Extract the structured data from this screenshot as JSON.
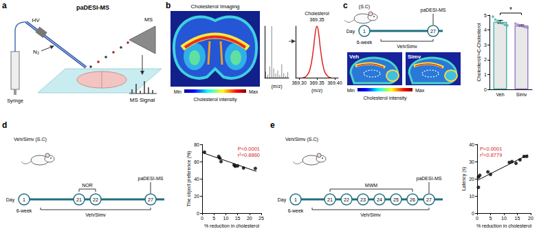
{
  "chart_data": [
    {
      "type": "bar",
      "categories": [
        null,
        null,
        null,
        null,
        null,
        null,
        null,
        null,
        null,
        null,
        null,
        null
      ],
      "values": [
        12,
        6,
        22,
        100,
        18,
        8,
        14,
        5,
        26,
        9,
        4,
        11
      ],
      "color": "#8c8c8c",
      "xlabel": "(m/z)",
      "ylim": [
        0,
        100
      ],
      "tick_labels": false,
      "grid": false
    },
    {
      "type": "line",
      "x": [
        369.31,
        369.32,
        369.33,
        369.34,
        369.345,
        369.35,
        369.355,
        369.36,
        369.37,
        369.38,
        369.39
      ],
      "values": [
        0,
        3,
        15,
        55,
        85,
        100,
        85,
        55,
        15,
        3,
        0
      ],
      "color": "#e02020",
      "xlabel": "(m/z)",
      "xlim": [
        369.29,
        369.41
      ],
      "xticks": [
        {
          "value": 369.3,
          "label": "369.30"
        },
        {
          "value": 369.35,
          "label": "369.35"
        },
        {
          "value": 369.4,
          "label": "369.40"
        }
      ],
      "ylim": [
        0,
        100
      ],
      "tick_labels": "x",
      "grid": false
    },
    {
      "type": "bar",
      "categories": [
        "Veh",
        "Simv"
      ],
      "values": [
        4.55,
        4.3
      ],
      "errors": [
        0.1,
        0.05
      ],
      "points": [
        [
          4.9,
          4.7,
          4.6,
          4.5,
          4.45,
          4.35,
          4.3
        ],
        [
          4.42,
          4.35,
          4.3,
          4.25,
          4.2,
          4.15
        ]
      ],
      "colors": [
        "#4fb3ad",
        "#9c7fc9"
      ],
      "ylabel": "Cholesterol/¹³C-Cholesterol",
      "ylim": [
        0,
        5
      ],
      "yticks": [
        0,
        1,
        2,
        3,
        4,
        5
      ],
      "annotations": [
        "*"
      ],
      "grid": false
    },
    {
      "type": "scatter",
      "x": [
        1,
        7,
        7.5,
        8,
        13.5,
        14,
        15,
        17.5,
        22.5
      ],
      "values": [
        71,
        66,
        64,
        60,
        56,
        54.5,
        55,
        52.5,
        52
      ],
      "color": "#000000",
      "trend": {
        "x": [
          0,
          23
        ],
        "values": [
          70.5,
          48.5
        ]
      },
      "xlabel": "% reduction in cholesterol",
      "ylabel": "The object preference (%)",
      "xlim": [
        0,
        25
      ],
      "xticks": [
        0,
        5,
        10,
        15,
        20,
        25
      ],
      "ylim": [
        0,
        80
      ],
      "yticks": [
        0,
        20,
        40,
        60,
        80
      ],
      "annotations": [
        "P<0.0001",
        "r²=0.8860"
      ],
      "grid": false
    },
    {
      "type": "scatter",
      "x": [
        0.5,
        0.5,
        1,
        4,
        5,
        12,
        13,
        14.5,
        16,
        17.5,
        18.5
      ],
      "values": [
        15,
        21,
        22,
        24,
        22.5,
        29.5,
        30,
        29,
        31,
        33,
        33
      ],
      "color": "#000000",
      "trend": {
        "x": [
          0,
          19
        ],
        "values": [
          19,
          34
        ]
      },
      "xlabel": "% reduction in cholesterol",
      "ylabel": "Latency (s)",
      "xlim": [
        0,
        20
      ],
      "xticks": [
        0,
        5,
        10,
        15,
        20
      ],
      "ylim": [
        0,
        40
      ],
      "yticks": [
        0,
        10,
        20,
        30,
        40
      ],
      "annotations": [
        "P<0.0001",
        "r²=0.8779"
      ],
      "grid": false
    }
  ],
  "figure": {
    "a": {
      "letter": "a",
      "hv": "HV",
      "title": "paDESI-MS",
      "ms": "MS",
      "gas": "N₂",
      "syringe": "Syringe",
      "signal": "MS Signal"
    },
    "b": {
      "letter": "b",
      "title": "Cholesterol Imaging",
      "peak": "Cholesterol",
      "peak_mz": "369.35",
      "colorbar": {
        "min": "Min",
        "max": "Max",
        "label": "Cholesterol intensity"
      }
    },
    "c": {
      "letter": "c",
      "route": "(S.C)",
      "method": "paDESI-MS",
      "day_label": "Day",
      "days": [
        1,
        27
      ],
      "age": "6-week",
      "treatment": "Veh/Simv",
      "images": [
        "Veh",
        "Simv"
      ],
      "colorbar": {
        "min": "Min",
        "max": "Max",
        "label": "Cholesterol intensity"
      }
    },
    "d": {
      "letter": "d",
      "route": "Veh/Simv (S.C)",
      "method": "paDESI-MS",
      "day_label": "Day",
      "days": [
        1,
        21,
        22,
        27
      ],
      "age": "6-week",
      "treatment": "Veh/Simv",
      "test": "NOR"
    },
    "e": {
      "letter": "e",
      "route": "Veh/Simv (S.C)",
      "method": "paDESI-MS",
      "day_label": "Day",
      "days": [
        1,
        21,
        22,
        23,
        24,
        25,
        26,
        27
      ],
      "age": "6-week",
      "treatment": "Veh/Simv",
      "test": "MWM"
    }
  }
}
